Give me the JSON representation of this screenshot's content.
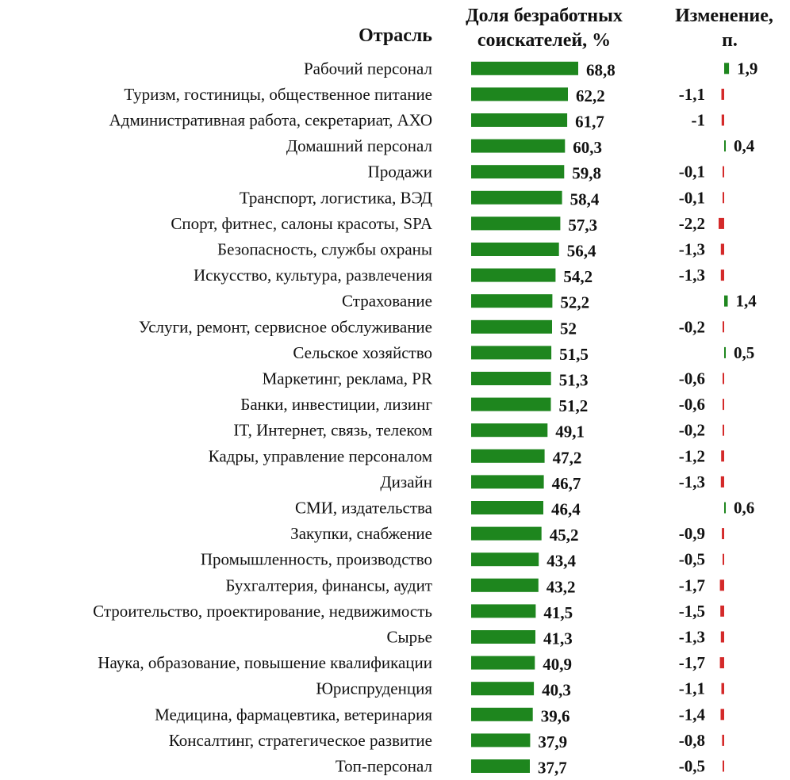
{
  "chart_data": {
    "type": "bar",
    "orientation": "horizontal",
    "headers": {
      "category": "Отрасль",
      "share_line1": "Доля безработных",
      "share_line2": "соискателей, %",
      "change_line1": "Изменение,",
      "change_line2": "п."
    },
    "categories": [
      "Рабочий персонал",
      "Туризм, гостиницы, общественное питание",
      "Административная работа, секретариат, АХО",
      "Домашний персонал",
      "Продажи",
      "Транспорт, логистика, ВЭД",
      "Спорт, фитнес, салоны красоты, SPA",
      "Безопасность, службы охраны",
      "Искусство, культура, развлечения",
      "Страхование",
      "Услуги, ремонт, сервисное обслуживание",
      "Сельское хозяйство",
      "Маркетинг, реклама, PR",
      "Банки, инвестиции, лизинг",
      "IT, Интернет, связь, телеком",
      "Кадры, управление персоналом",
      "Дизайн",
      "СМИ, издательства",
      "Закупки, снабжение",
      "Промышленность, производство",
      "Бухгалтерия, финансы, аудит",
      "Строительство, проектирование, недвижимость",
      "Сырье",
      "Наука, образование, повышение квалификации",
      "Юриспруденция",
      "Медицина, фармацевтика, ветеринария",
      "Консалтинг, стратегическое развитие",
      "Топ-персонал"
    ],
    "series": [
      {
        "name": "Доля безработных соискателей, %",
        "values": [
          68.8,
          62.2,
          61.7,
          60.3,
          59.8,
          58.4,
          57.3,
          56.4,
          54.2,
          52.2,
          52,
          51.5,
          51.3,
          51.2,
          49.1,
          47.2,
          46.7,
          46.4,
          45.2,
          43.4,
          43.2,
          41.5,
          41.3,
          40.9,
          40.3,
          39.6,
          37.9,
          37.7
        ],
        "labels": [
          "68,8",
          "62,2",
          "61,7",
          "60,3",
          "59,8",
          "58,4",
          "57,3",
          "56,4",
          "54,2",
          "52,2",
          "52",
          "51,5",
          "51,3",
          "51,2",
          "49,1",
          "47,2",
          "46,7",
          "46,4",
          "45,2",
          "43,4",
          "43,2",
          "41,5",
          "41,3",
          "40,9",
          "40,3",
          "39,6",
          "37,9",
          "37,7"
        ]
      },
      {
        "name": "Изменение, п.",
        "values": [
          1.9,
          -1.1,
          -1,
          0.4,
          -0.1,
          -0.1,
          -2.2,
          -1.3,
          -1.3,
          1.4,
          -0.2,
          0.5,
          -0.6,
          -0.6,
          -0.2,
          -1.2,
          -1.3,
          0.6,
          -0.9,
          -0.5,
          -1.7,
          -1.5,
          -1.3,
          -1.7,
          -1.1,
          -1.4,
          -0.8,
          -0.5
        ],
        "labels": [
          "1,9",
          "-1,1",
          "-1",
          "0,4",
          "-0,1",
          "-0,1",
          "-2,2",
          "-1,3",
          "-1,3",
          "1,4",
          "-0,2",
          "0,5",
          "-0,6",
          "-0,6",
          "-0,2",
          "-1,2",
          "-1,3",
          "0,6",
          "-0,9",
          "-0,5",
          "-1,7",
          "-1,5",
          "-1,3",
          "-1,7",
          "-1,1",
          "-1,4",
          "-0,8",
          "-0,5"
        ]
      }
    ],
    "xlim": [
      0,
      70
    ],
    "colors": {
      "bar": "#1e861e",
      "positive": "#1e861e",
      "negative": "#d42a2a"
    }
  }
}
